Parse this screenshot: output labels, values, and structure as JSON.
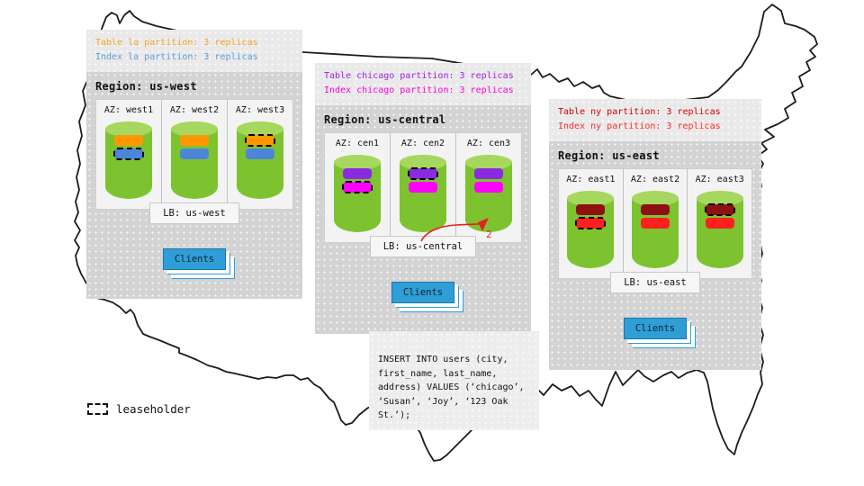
{
  "colors": {
    "cylinder_body": "#7dc32f",
    "cylinder_top": "#a6d75f",
    "clients": "#2f9ed7",
    "arrow": "#e32222",
    "map_stroke": "#1c1c1c"
  },
  "regions": [
    {
      "name": "us-west",
      "notes": [
        {
          "text": "Table la partition: 3 replicas",
          "color": "#f5a623"
        },
        {
          "text": "Index la partition: 3 replicas",
          "color": "#5b9bd5"
        }
      ],
      "title": "Region: us-west",
      "azs": [
        {
          "label": "AZ: west1",
          "replicas": [
            {
              "partition": "table-la",
              "color": "#ff9800",
              "leaseholder": false
            },
            {
              "partition": "index-la",
              "color": "#4d86d8",
              "leaseholder": true
            }
          ]
        },
        {
          "label": "AZ: west2",
          "replicas": [
            {
              "partition": "table-la",
              "color": "#ff9800",
              "leaseholder": false
            },
            {
              "partition": "index-la",
              "color": "#4d86d8",
              "leaseholder": false
            }
          ]
        },
        {
          "label": "AZ: west3",
          "replicas": [
            {
              "partition": "table-la",
              "color": "#ff9800",
              "leaseholder": true
            },
            {
              "partition": "index-la",
              "color": "#4d86d8",
              "leaseholder": false
            }
          ]
        }
      ],
      "lb_label": "LB: us-west",
      "clients_label": "Clients"
    },
    {
      "name": "us-central",
      "notes": [
        {
          "text": "Table chicago partition: 3 replicas",
          "color": "#a31fe8"
        },
        {
          "text": "Index chicago partition: 3 replicas",
          "color": "#ff00dd"
        }
      ],
      "title": "Region: us-central",
      "azs": [
        {
          "label": "AZ: cen1",
          "replicas": [
            {
              "partition": "table-chicago",
              "color": "#8a2be2",
              "leaseholder": false
            },
            {
              "partition": "index-chicago",
              "color": "#ff00ff",
              "leaseholder": true
            }
          ]
        },
        {
          "label": "AZ: cen2",
          "replicas": [
            {
              "partition": "table-chicago",
              "color": "#8a2be2",
              "leaseholder": true
            },
            {
              "partition": "index-chicago",
              "color": "#ff00ff",
              "leaseholder": false
            }
          ]
        },
        {
          "label": "AZ: cen3",
          "replicas": [
            {
              "partition": "table-chicago",
              "color": "#8a2be2",
              "leaseholder": false
            },
            {
              "partition": "index-chicago",
              "color": "#ff00ff",
              "leaseholder": false
            }
          ]
        }
      ],
      "lb_label": "LB: us-central",
      "clients_label": "Clients",
      "annotation": {
        "label": "2"
      }
    },
    {
      "name": "us-east",
      "notes": [
        {
          "text": "Table ny partition: 3 replicas",
          "color": "#d40000"
        },
        {
          "text": "Index ny partition: 3 replicas",
          "color": "#ff2a2a"
        }
      ],
      "title": "Region: us-east",
      "azs": [
        {
          "label": "AZ: east1",
          "replicas": [
            {
              "partition": "table-ny",
              "color": "#8e1111",
              "leaseholder": false
            },
            {
              "partition": "index-ny",
              "color": "#ff1f1f",
              "leaseholder": true
            }
          ]
        },
        {
          "label": "AZ: east2",
          "replicas": [
            {
              "partition": "table-ny",
              "color": "#8e1111",
              "leaseholder": false
            },
            {
              "partition": "index-ny",
              "color": "#ff1f1f",
              "leaseholder": false
            }
          ]
        },
        {
          "label": "AZ: east3",
          "replicas": [
            {
              "partition": "table-ny",
              "color": "#8e1111",
              "leaseholder": true
            },
            {
              "partition": "index-ny",
              "color": "#ff1f1f",
              "leaseholder": false
            }
          ]
        }
      ],
      "lb_label": "LB: us-east",
      "clients_label": "Clients"
    }
  ],
  "sql_box": {
    "lines": [
      "INSERT INTO users (city,",
      "first_name, last_name,",
      "address) VALUES (‘chicago’,",
      "‘Susan’, ‘Joy’, ‘123 Oak",
      "St.’);"
    ]
  },
  "legend": {
    "label": "leaseholder"
  }
}
